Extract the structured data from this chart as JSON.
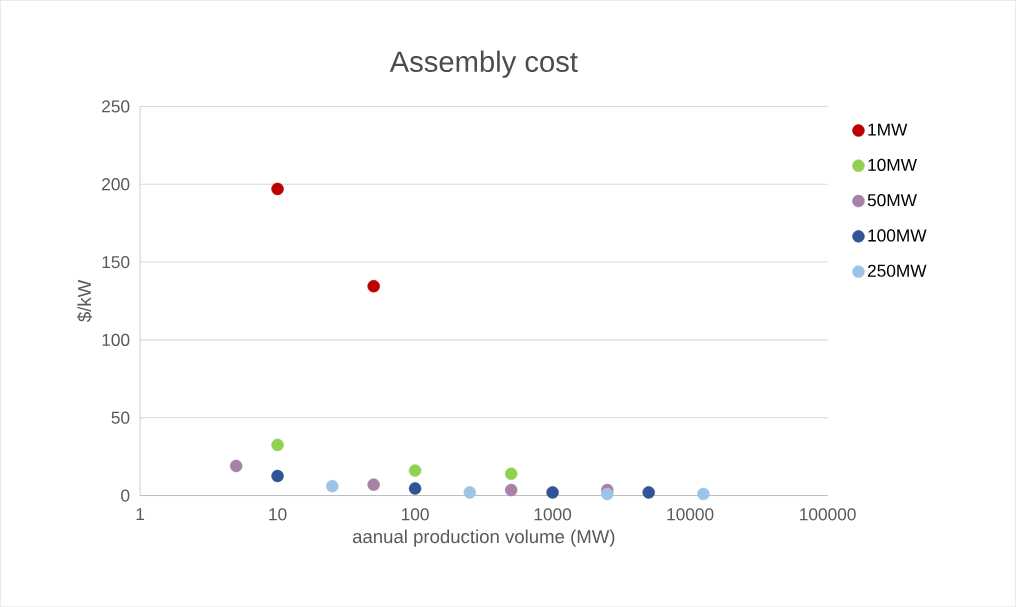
{
  "chart_data": {
    "type": "scatter",
    "title": "Assembly cost",
    "xlabel": "aanual production volume (MW)",
    "ylabel": "$/kW",
    "log": "x",
    "xlim": [
      1,
      100000
    ],
    "xticks": [
      1,
      10,
      100,
      1000,
      10000,
      100000
    ],
    "ylim": [
      0,
      250
    ],
    "yticks": [
      0,
      50,
      100,
      150,
      200,
      250
    ],
    "grid": "y",
    "legend": "right",
    "marker": "circle",
    "series": [
      {
        "name": "1MW",
        "color": "#c00000",
        "x": [
          10,
          50
        ],
        "values": [
          197,
          134.5
        ]
      },
      {
        "name": "10MW",
        "color": "#92d050",
        "x": [
          10,
          100,
          500
        ],
        "values": [
          32.5,
          16,
          14
        ]
      },
      {
        "name": "50MW",
        "color": "#a682a7",
        "x": [
          5,
          50,
          500,
          2500
        ],
        "values": [
          19,
          7,
          3.5,
          3.5
        ]
      },
      {
        "name": "100MW",
        "color": "#2f5597",
        "x": [
          10,
          100,
          1000,
          5000
        ],
        "values": [
          12.5,
          4.5,
          2,
          2
        ]
      },
      {
        "name": "250MW",
        "color": "#9dc3e6",
        "x": [
          25,
          250,
          2500,
          12500
        ],
        "values": [
          6,
          2,
          1,
          1
        ]
      }
    ]
  }
}
